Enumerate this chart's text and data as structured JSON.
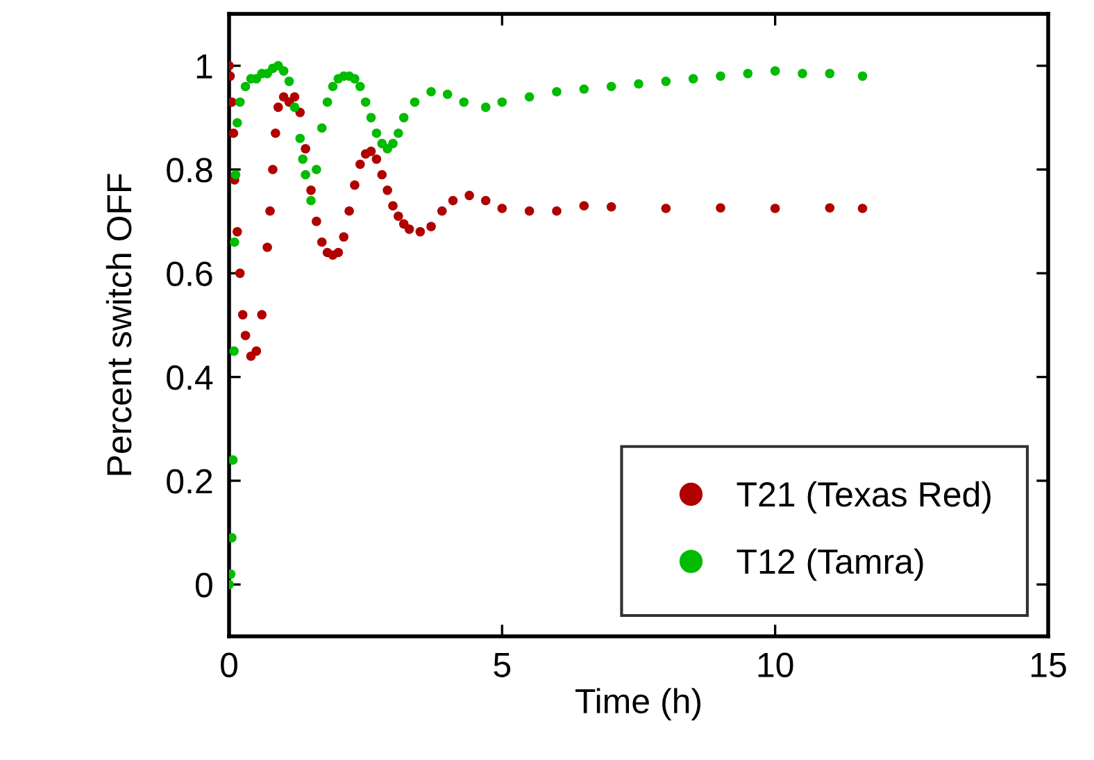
{
  "chart_data": {
    "type": "scatter",
    "xlabel": "Time (h)",
    "ylabel": "Percent switch OFF",
    "xlim": [
      0,
      15
    ],
    "xticks": [
      0,
      5,
      10,
      15
    ],
    "ylim": [
      -0.1,
      1.1
    ],
    "yticks": [
      0,
      0.2,
      0.4,
      0.6,
      0.8,
      1
    ],
    "grid": false,
    "legend": "bottom right",
    "marker": "circle",
    "series": [
      {
        "name": "T21 (Texas Red)",
        "color": "#b00000",
        "x": [
          0,
          0.02,
          0.05,
          0.08,
          0.1,
          0.15,
          0.2,
          0.25,
          0.3,
          0.4,
          0.5,
          0.6,
          0.7,
          0.75,
          0.8,
          0.85,
          0.9,
          1.0,
          1.1,
          1.2,
          1.3,
          1.4,
          1.5,
          1.6,
          1.7,
          1.8,
          1.9,
          2.0,
          2.1,
          2.2,
          2.3,
          2.4,
          2.5,
          2.6,
          2.7,
          2.8,
          2.9,
          3.0,
          3.1,
          3.2,
          3.3,
          3.5,
          3.7,
          3.9,
          4.1,
          4.4,
          4.7,
          5.0,
          5.5,
          6.0,
          6.5,
          7.0,
          8.0,
          9.0,
          10.0,
          11.0,
          11.6
        ],
        "values": [
          1.0,
          0.98,
          0.93,
          0.87,
          0.78,
          0.68,
          0.6,
          0.52,
          0.48,
          0.44,
          0.45,
          0.52,
          0.65,
          0.72,
          0.8,
          0.87,
          0.92,
          0.94,
          0.93,
          0.94,
          0.91,
          0.84,
          0.76,
          0.7,
          0.66,
          0.64,
          0.635,
          0.64,
          0.67,
          0.72,
          0.77,
          0.81,
          0.83,
          0.835,
          0.82,
          0.79,
          0.76,
          0.73,
          0.71,
          0.695,
          0.685,
          0.68,
          0.69,
          0.72,
          0.74,
          0.75,
          0.74,
          0.725,
          0.72,
          0.72,
          0.73,
          0.728,
          0.725,
          0.726,
          0.725,
          0.726,
          0.725
        ]
      },
      {
        "name": "T12 (Tamra)",
        "color": "#00bb00",
        "x": [
          0,
          0.03,
          0.05,
          0.07,
          0.09,
          0.1,
          0.12,
          0.15,
          0.2,
          0.3,
          0.4,
          0.5,
          0.6,
          0.7,
          0.8,
          0.9,
          1.0,
          1.1,
          1.2,
          1.3,
          1.35,
          1.4,
          1.5,
          1.6,
          1.7,
          1.8,
          1.9,
          2.0,
          2.1,
          2.2,
          2.3,
          2.4,
          2.5,
          2.6,
          2.7,
          2.8,
          2.9,
          3.0,
          3.1,
          3.2,
          3.4,
          3.7,
          4.0,
          4.3,
          4.7,
          5.0,
          5.5,
          6.0,
          6.5,
          7.0,
          7.5,
          8.0,
          8.5,
          9.0,
          9.5,
          10.0,
          10.5,
          11.0,
          11.6
        ],
        "values": [
          0.0,
          0.02,
          0.09,
          0.24,
          0.45,
          0.66,
          0.79,
          0.89,
          0.93,
          0.96,
          0.975,
          0.975,
          0.985,
          0.985,
          0.995,
          1.0,
          0.99,
          0.97,
          0.92,
          0.86,
          0.82,
          0.79,
          0.74,
          0.8,
          0.88,
          0.93,
          0.96,
          0.975,
          0.98,
          0.98,
          0.975,
          0.96,
          0.93,
          0.9,
          0.87,
          0.85,
          0.84,
          0.85,
          0.87,
          0.9,
          0.93,
          0.95,
          0.945,
          0.93,
          0.92,
          0.93,
          0.94,
          0.95,
          0.955,
          0.96,
          0.965,
          0.97,
          0.975,
          0.98,
          0.985,
          0.99,
          0.985,
          0.985,
          0.98
        ]
      }
    ]
  }
}
